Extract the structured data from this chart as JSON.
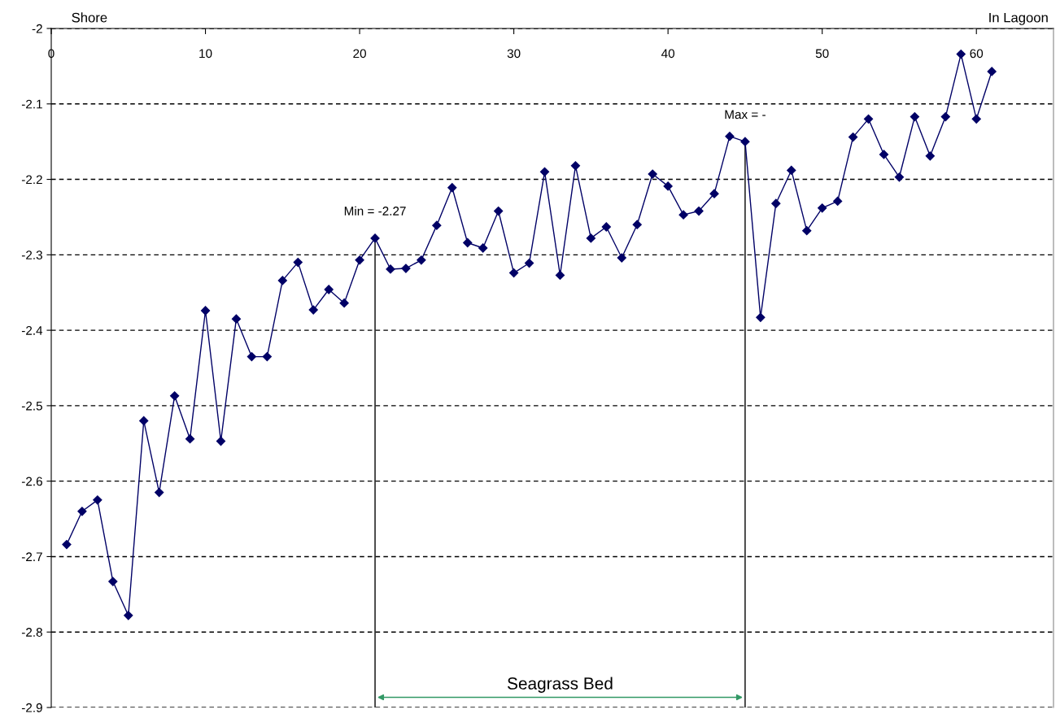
{
  "chart_data": {
    "type": "line",
    "x": [
      1,
      2,
      3,
      4,
      5,
      6,
      7,
      8,
      9,
      10,
      11,
      12,
      13,
      14,
      15,
      16,
      17,
      18,
      19,
      20,
      21,
      22,
      23,
      24,
      25,
      26,
      27,
      28,
      29,
      30,
      31,
      32,
      33,
      34,
      35,
      36,
      37,
      38,
      39,
      40,
      41,
      42,
      43,
      44,
      45,
      46,
      47,
      48,
      49,
      50,
      51,
      52,
      53,
      54,
      55,
      56,
      57,
      58,
      59,
      60,
      61
    ],
    "series": [
      {
        "color": "#000066",
        "values": [
          -2.684,
          -2.64,
          -2.625,
          -2.733,
          -2.778,
          -2.52,
          -2.615,
          -2.487,
          -2.544,
          -2.374,
          -2.547,
          -2.385,
          -2.435,
          -2.435,
          -2.334,
          -2.31,
          -2.373,
          -2.346,
          -2.364,
          -2.307,
          -2.278,
          -2.319,
          -2.318,
          -2.307,
          -2.261,
          -2.211,
          -2.284,
          -2.291,
          -2.242,
          -2.324,
          -2.311,
          -2.19,
          -2.327,
          -2.182,
          -2.278,
          -2.263,
          -2.304,
          -2.26,
          -2.193,
          -2.209,
          -2.247,
          -2.242,
          -2.219,
          -2.143,
          -2.15,
          -2.383,
          -2.232,
          -2.188,
          -2.268,
          -2.238,
          -2.229,
          -2.144,
          -2.12,
          -2.167,
          -2.197,
          -2.117,
          -2.169,
          -2.117,
          -2.034,
          -2.12,
          -2.057
        ]
      }
    ],
    "xlim": [
      0,
      65
    ],
    "xticks": [
      0,
      10,
      20,
      30,
      40,
      50,
      60
    ],
    "ylim": [
      -2.9,
      -2
    ],
    "yticks": [
      -2.9,
      -2.8,
      -2.7,
      -2.6,
      -2.5,
      -2.4,
      -2.3,
      -2.2,
      -2.1,
      -2
    ],
    "grid": "y",
    "marker": "diamond",
    "line_style": "solid",
    "annotations": [
      "Shore",
      "In Lagoon",
      {
        "text": "Min = -2.27",
        "x": 21,
        "y": -2.278
      },
      {
        "text": "Max = -",
        "x": 45,
        "y": -2.15
      },
      "Seagrass Bed"
    ],
    "ref_lines": [
      {
        "axis": "x",
        "value": 21,
        "color": "#000000"
      },
      {
        "axis": "x",
        "value": 45,
        "color": "#000000"
      }
    ]
  }
}
